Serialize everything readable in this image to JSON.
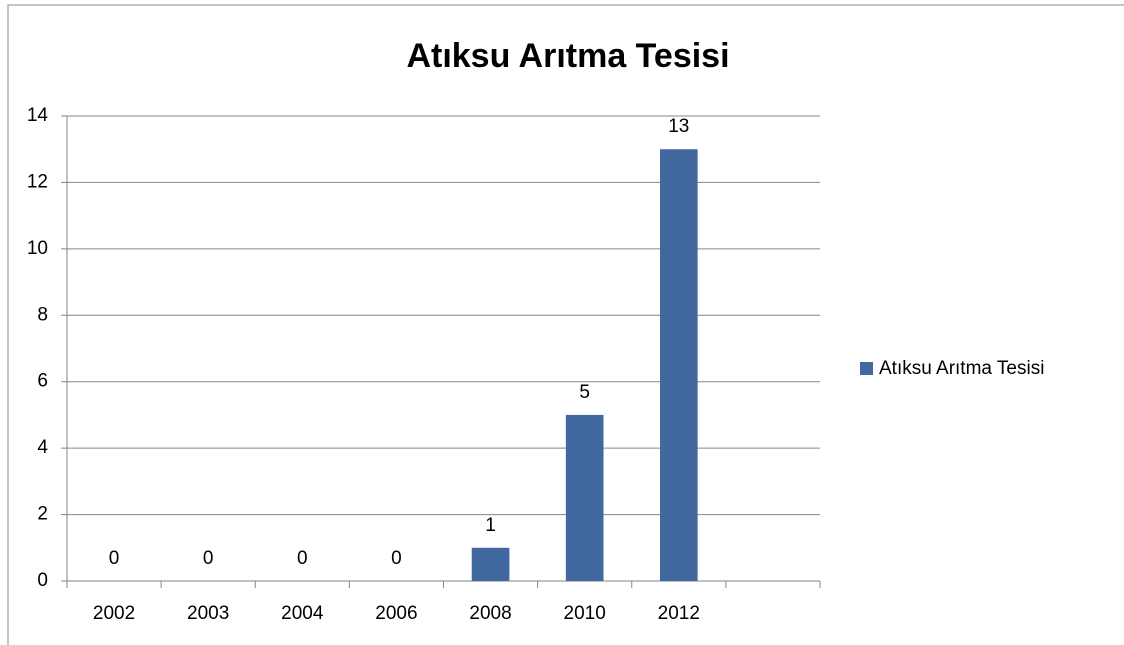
{
  "chart_data": {
    "type": "bar",
    "title": "Atıksu Arıtma Tesisi",
    "categories": [
      "2002",
      "2003",
      "2004",
      "2006",
      "2008",
      "2010",
      "2012",
      null
    ],
    "series": [
      {
        "name": "Atıksu Arıtma Tesisi",
        "color": "#4169a0",
        "values": [
          0,
          0,
          0,
          0,
          1,
          5,
          13,
          null
        ]
      }
    ],
    "ylim": [
      0,
      14
    ],
    "yticks": [
      0,
      2,
      4,
      6,
      8,
      10,
      12,
      14
    ],
    "grid": true,
    "legend": "right"
  }
}
